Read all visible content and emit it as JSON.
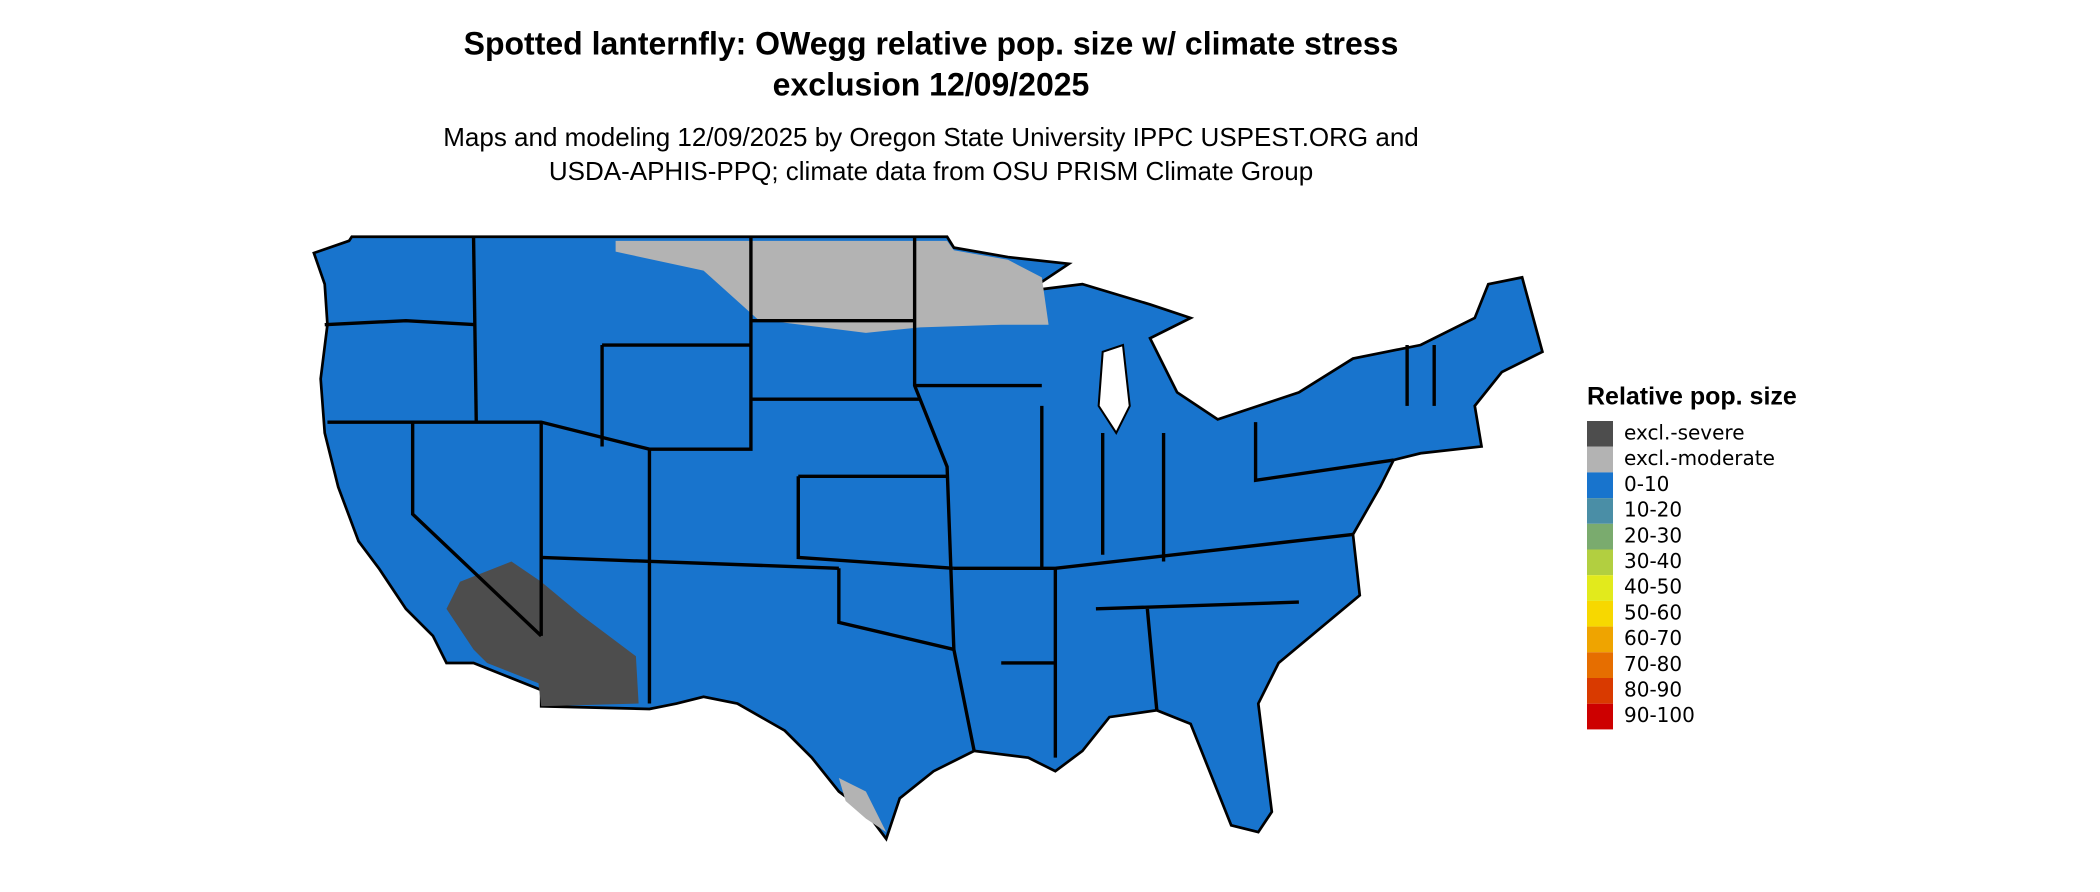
{
  "header": {
    "title_line1": "Spotted lanternfly: OWegg relative pop. size w/ climate stress",
    "title_line2": "exclusion 12/09/2025",
    "subtitle_line1": "Maps and modeling 12/09/2025 by Oregon State University IPPC USPEST.ORG and",
    "subtitle_line2": "USDA-APHIS-PPQ; climate data from OSU PRISM Climate Group"
  },
  "legend": {
    "title": "Relative pop. size",
    "items": [
      {
        "label": "excl.-severe",
        "color": "#4d4d4d"
      },
      {
        "label": "excl.-moderate",
        "color": "#b3b3b3"
      },
      {
        "label": "0-10",
        "color": "#1874cd"
      },
      {
        "label": "10-20",
        "color": "#4a8ea6"
      },
      {
        "label": "20-30",
        "color": "#7aab6e"
      },
      {
        "label": "30-40",
        "color": "#b2cf40"
      },
      {
        "label": "40-50",
        "color": "#e2ea1c"
      },
      {
        "label": "50-60",
        "color": "#f7d800"
      },
      {
        "label": "60-70",
        "color": "#efa400"
      },
      {
        "label": "70-80",
        "color": "#e66e00"
      },
      {
        "label": "80-90",
        "color": "#d93a00"
      },
      {
        "label": "90-100",
        "color": "#cd0000"
      }
    ]
  }
}
